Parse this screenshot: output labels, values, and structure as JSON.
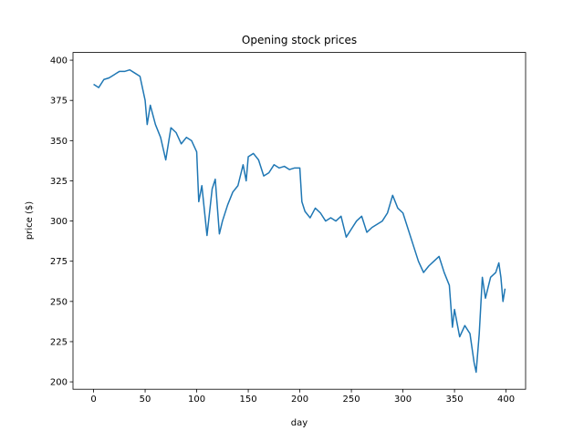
{
  "chart_data": {
    "type": "line",
    "title": "Opening stock prices",
    "x_label": "day",
    "y_label": "price ($)",
    "x": [
      0,
      5,
      10,
      15,
      20,
      25,
      30,
      35,
      40,
      45,
      50,
      52,
      55,
      60,
      65,
      70,
      75,
      80,
      85,
      90,
      95,
      100,
      102,
      105,
      110,
      115,
      118,
      122,
      125,
      130,
      135,
      140,
      145,
      148,
      150,
      155,
      160,
      165,
      170,
      175,
      180,
      185,
      190,
      195,
      200,
      202,
      205,
      210,
      215,
      220,
      225,
      230,
      235,
      240,
      245,
      250,
      255,
      260,
      265,
      270,
      275,
      280,
      285,
      290,
      295,
      300,
      305,
      310,
      315,
      320,
      325,
      330,
      335,
      340,
      345,
      348,
      350,
      355,
      360,
      365,
      369,
      371,
      374,
      377,
      380,
      385,
      390,
      393,
      395,
      397,
      399
    ],
    "series": [
      {
        "name": "price",
        "color": "#1f77b4",
        "values": [
          385,
          383,
          388,
          389,
          391,
          393,
          393,
          394,
          392,
          390,
          375,
          360,
          372,
          360,
          352,
          338,
          358,
          355,
          348,
          352,
          350,
          343,
          312,
          322,
          291,
          320,
          326,
          292,
          300,
          310,
          318,
          322,
          335,
          325,
          340,
          342,
          338,
          328,
          330,
          335,
          333,
          334,
          332,
          333,
          333,
          312,
          306,
          302,
          308,
          305,
          300,
          302,
          300,
          303,
          290,
          295,
          300,
          303,
          293,
          296,
          298,
          300,
          305,
          316,
          308,
          305,
          295,
          285,
          275,
          268,
          272,
          275,
          278,
          268,
          260,
          234,
          245,
          228,
          235,
          230,
          212,
          206,
          230,
          265,
          252,
          265,
          268,
          274,
          265,
          250,
          258
        ]
      }
    ],
    "xlim": [
      -19.95,
      418.95
    ],
    "ylim": [
      195.4,
      404.8
    ],
    "xticks": [
      0,
      50,
      100,
      150,
      200,
      250,
      300,
      350,
      400
    ],
    "yticks": [
      200,
      225,
      250,
      275,
      300,
      325,
      350,
      375,
      400
    ]
  }
}
